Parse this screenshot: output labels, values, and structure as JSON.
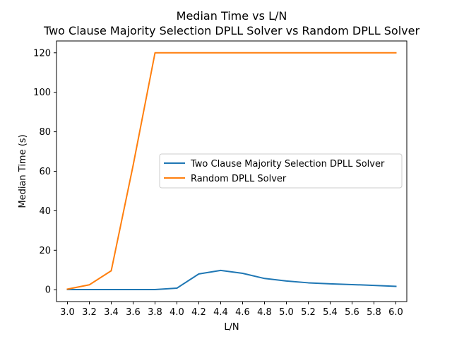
{
  "chart_data": {
    "type": "line",
    "title": "Median Time vs L/N",
    "subtitle": "Two Clause Majority Selection DPLL Solver vs Random DPLL Solver",
    "xlabel": "L/N",
    "ylabel": "Median Time (s)",
    "x": [
      3.0,
      3.2,
      3.4,
      3.6,
      3.8,
      4.0,
      4.2,
      4.4,
      4.6,
      4.8,
      5.0,
      5.2,
      5.4,
      5.6,
      5.8,
      6.0
    ],
    "xticks": [
      "3.0",
      "3.2",
      "3.4",
      "3.6",
      "3.8",
      "4.0",
      "4.2",
      "4.4",
      "4.6",
      "4.8",
      "5.0",
      "5.2",
      "5.4",
      "5.6",
      "5.8",
      "6.0"
    ],
    "yticks": [
      "0",
      "20",
      "40",
      "60",
      "80",
      "100",
      "120"
    ],
    "xlim": [
      2.9,
      6.1
    ],
    "ylim": [
      -6,
      126
    ],
    "grid": false,
    "legend_position": "center-right",
    "series": [
      {
        "name": "Two Clause Majority Selection DPLL Solver",
        "color": "#1f77b4",
        "values": [
          0.1,
          0.1,
          0.1,
          0.1,
          0.1,
          0.8,
          8.0,
          9.8,
          8.3,
          5.7,
          4.4,
          3.5,
          3.0,
          2.6,
          2.2,
          1.7
        ]
      },
      {
        "name": "Random DPLL Solver",
        "color": "#ff7f0e",
        "values": [
          0.3,
          2.5,
          9.6,
          63.0,
          120.0,
          120.0,
          120.0,
          120.0,
          120.0,
          120.0,
          120.0,
          120.0,
          120.0,
          120.0,
          120.0,
          120.0
        ]
      }
    ]
  }
}
